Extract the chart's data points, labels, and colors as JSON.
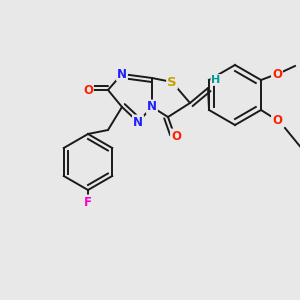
{
  "bg_color": "#e8e8e8",
  "bond_color": "#1a1a1a",
  "bond_width": 1.4,
  "atom_colors": {
    "N": "#2020ff",
    "O": "#ff2000",
    "S": "#c8a000",
    "F": "#ff00cc",
    "H": "#009999",
    "C": "#1a1a1a"
  },
  "font_size": 8.5
}
